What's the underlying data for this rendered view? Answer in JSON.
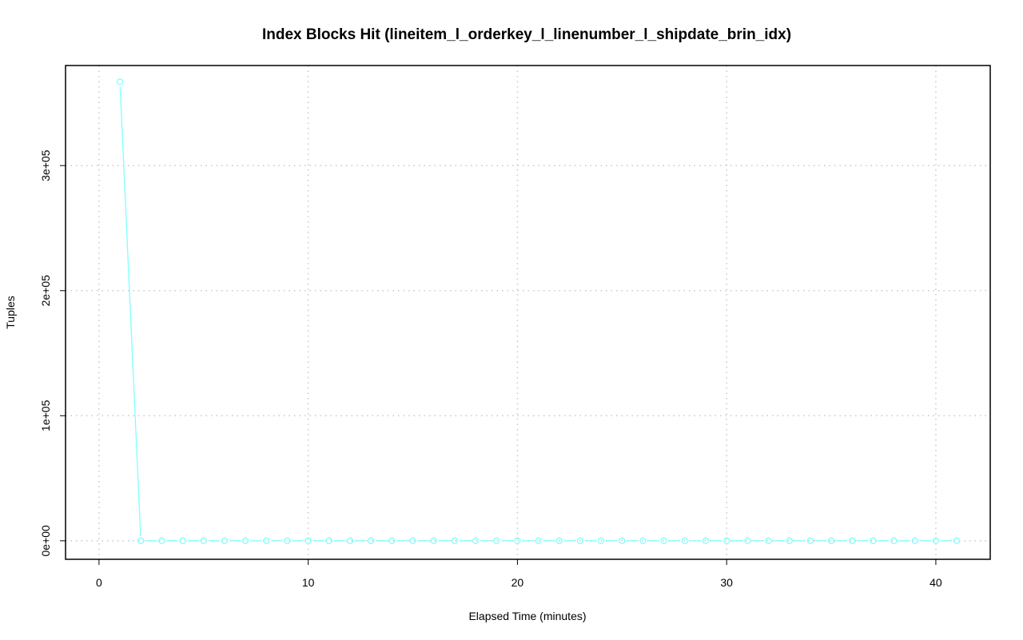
{
  "chart_data": {
    "type": "line",
    "title": "Index Blocks Hit (lineitem_l_orderkey_l_linenumber_l_shipdate_brin_idx)",
    "xlabel": "Elapsed Time (minutes)",
    "ylabel": "Tuples",
    "xlim": [
      -1.6,
      42.6
    ],
    "ylim": [
      -14800,
      380000
    ],
    "x_ticks": [
      0,
      10,
      20,
      30,
      40
    ],
    "x_tick_labels": [
      "0",
      "10",
      "20",
      "30",
      "40"
    ],
    "y_ticks": [
      0,
      100000,
      200000,
      300000
    ],
    "y_tick_labels": [
      "0e+00",
      "1e+05",
      "2e+05",
      "3e+05"
    ],
    "grid": true,
    "color": "#7fffff",
    "series": [
      {
        "x": [
          1,
          2,
          3,
          4,
          5,
          6,
          7,
          8,
          9,
          10,
          11,
          12,
          13,
          14,
          15,
          16,
          17,
          18,
          19,
          20,
          21,
          22,
          23,
          24,
          25,
          26,
          27,
          28,
          29,
          30,
          31,
          32,
          33,
          34,
          35,
          36,
          37,
          38,
          39,
          40,
          41
        ],
        "values": [
          367000,
          0,
          0,
          0,
          0,
          0,
          0,
          0,
          0,
          0,
          0,
          0,
          0,
          0,
          0,
          0,
          0,
          0,
          0,
          0,
          0,
          0,
          0,
          0,
          0,
          0,
          0,
          0,
          0,
          0,
          0,
          0,
          0,
          0,
          0,
          0,
          0,
          0,
          0,
          0,
          0
        ]
      }
    ]
  }
}
